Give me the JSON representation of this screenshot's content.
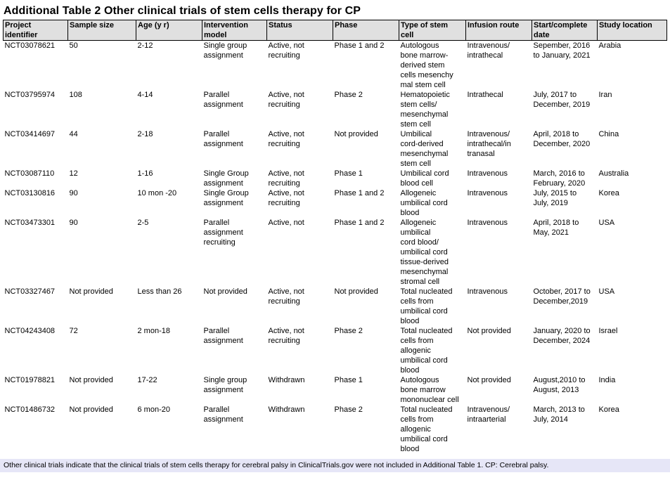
{
  "page": {
    "title": "Additional Table 2 Other clinical trials of stem cells therapy for CP",
    "footnote": "Other clinical trials indicate that the clinical trials of stem cells therapy for cerebral palsy in ClinicalTrials.gov were not included in Additional Table 1. CP: Cerebral palsy."
  },
  "colors": {
    "header_bg": "#e0e0e0",
    "footnote_bg": "#e6e6f7",
    "border": "#000000"
  },
  "table": {
    "columns": [
      "Project\nidentifier",
      "Sample size",
      "Age (y r)",
      "Intervention\nmodel",
      "Status",
      "Phase",
      "Type of stem\ncell",
      "Infusion route",
      "Start/complete\ndate",
      "Study location"
    ],
    "rows": [
      [
        "NCT03078621",
        "50",
        "2-12",
        "Single group\nassignment",
        "Active, not\nrecruiting",
        "Phase 1 and 2",
        "Autologous\nbone marrow-\nderived stem\ncells mesenchy\nmal stem cell",
        "Intravenous/\nintrathecal",
        "Sepember, 2016\nto January, 2021",
        "Arabia"
      ],
      [
        "NCT03795974",
        "108",
        "4-14",
        "Parallel\nassignment",
        "Active, not\nrecruiting",
        "Phase 2",
        "Hematopoietic\nstem cells/\nmesenchymal\nstem cell",
        "Intrathecal",
        "July, 2017 to\nDecember, 2019",
        "Iran"
      ],
      [
        "NCT03414697",
        "44",
        "2-18",
        "Parallel\nassignment",
        "Active, not\nrecruiting",
        "Not provided",
        "Umbilical\ncord-derived\nmesenchymal\nstem cell",
        "Intravenous/\nintrathecal/in\ntranasal",
        "April, 2018 to\nDecember, 2020",
        "China"
      ],
      [
        "NCT03087110",
        "12",
        "1-16",
        "Single Group\nassignment",
        "Active, not\nrecruiting",
        "Phase 1",
        "Umbilical cord\nblood cell",
        "Intravenous",
        "March, 2016 to\nFebruary, 2020",
        "Australia"
      ],
      [
        "NCT03130816",
        "90",
        "10 mon -20",
        "Single Group\nassignment",
        "Active, not\nrecruiting",
        "Phase 1 and 2",
        "Allogeneic\numbilical cord\nblood",
        "Intravenous",
        "July, 2015 to\nJuly, 2019",
        "Korea"
      ],
      [
        "NCT03473301",
        "90",
        "2-5",
        "Parallel\nassignment\nrecruiting",
        "Active, not",
        "Phase 1 and 2",
        "Allogeneic\numbilical\ncord blood/\numbilical cord\ntissue-derived\nmesenchymal\nstromal cell",
        "Intravenous",
        "April, 2018 to\nMay, 2021",
        "USA"
      ],
      [
        "NCT03327467",
        "Not provided",
        "Less than 26",
        "Not provided",
        "Active, not\nrecruiting",
        "Not provided",
        "Total nucleated\ncells from\numbilical cord\nblood",
        "Intravenous",
        "October, 2017 to\nDecember,2019",
        "USA"
      ],
      [
        "NCT04243408",
        "72",
        "2 mon-18",
        "Parallel\nassignment",
        "Active, not\nrecruiting",
        "Phase 2",
        "Total nucleated\ncells from\nallogenic\numbilical cord\nblood",
        "Not provided",
        "January, 2020 to\nDecember, 2024",
        "Israel"
      ],
      [
        "NCT01978821",
        "Not provided",
        "17-22",
        "Single group\nassignment",
        "Withdrawn",
        "Phase 1",
        "Autologous\nbone marrow\nmononuclear cell",
        "Not provided",
        "August,2010 to\nAugust, 2013",
        "India"
      ],
      [
        "NCT01486732",
        "Not provided",
        "6 mon-20",
        "Parallel\nassignment",
        "Withdrawn",
        "Phase 2",
        "Total nucleated\ncells from\nallogenic\numbilical cord\nblood",
        "Intravenous/\nintraarterial",
        "March, 2013 to\nJuly, 2014",
        "Korea"
      ]
    ]
  }
}
